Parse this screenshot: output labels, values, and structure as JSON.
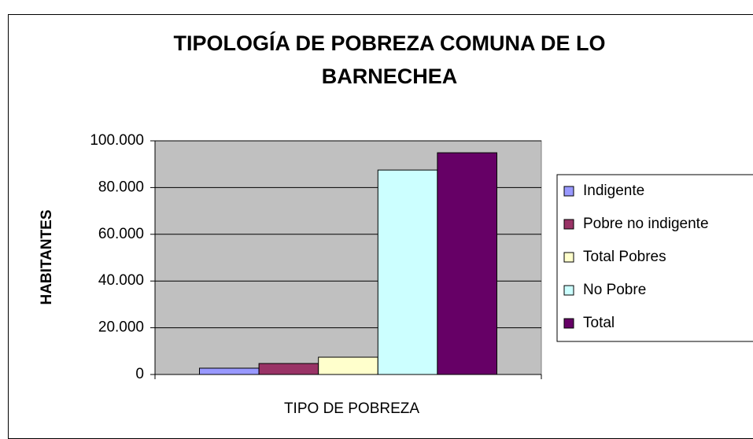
{
  "chart_data": {
    "type": "bar",
    "title": "TIPOLOGÍA DE POBREZA COMUNA DE LO BARNECHEA",
    "xlabel": "TIPO DE POBREZA",
    "ylabel": "HABITANTES",
    "series": [
      {
        "name": "Indigente",
        "color": "#9999ff",
        "values": [
          2700
        ]
      },
      {
        "name": "Pobre no indigente",
        "color": "#993366",
        "values": [
          4700
        ]
      },
      {
        "name": "Total  Pobres",
        "color": "#ffffcc",
        "values": [
          7400
        ]
      },
      {
        "name": "No Pobre",
        "color": "#ccffff",
        "values": [
          87500
        ]
      },
      {
        "name": "Total",
        "color": "#660066",
        "values": [
          94900
        ]
      }
    ],
    "ylim": [
      0,
      100000
    ],
    "yticks": [
      0,
      {
        "value": 20000,
        "label": "20.000"
      },
      {
        "value": 40000,
        "label": "40.000"
      },
      {
        "value": 60000,
        "label": "60.000"
      },
      {
        "value": 80000,
        "label": "80.000"
      },
      {
        "value": 100000,
        "label": "100.000"
      }
    ],
    "grid": true,
    "legend": "right"
  }
}
